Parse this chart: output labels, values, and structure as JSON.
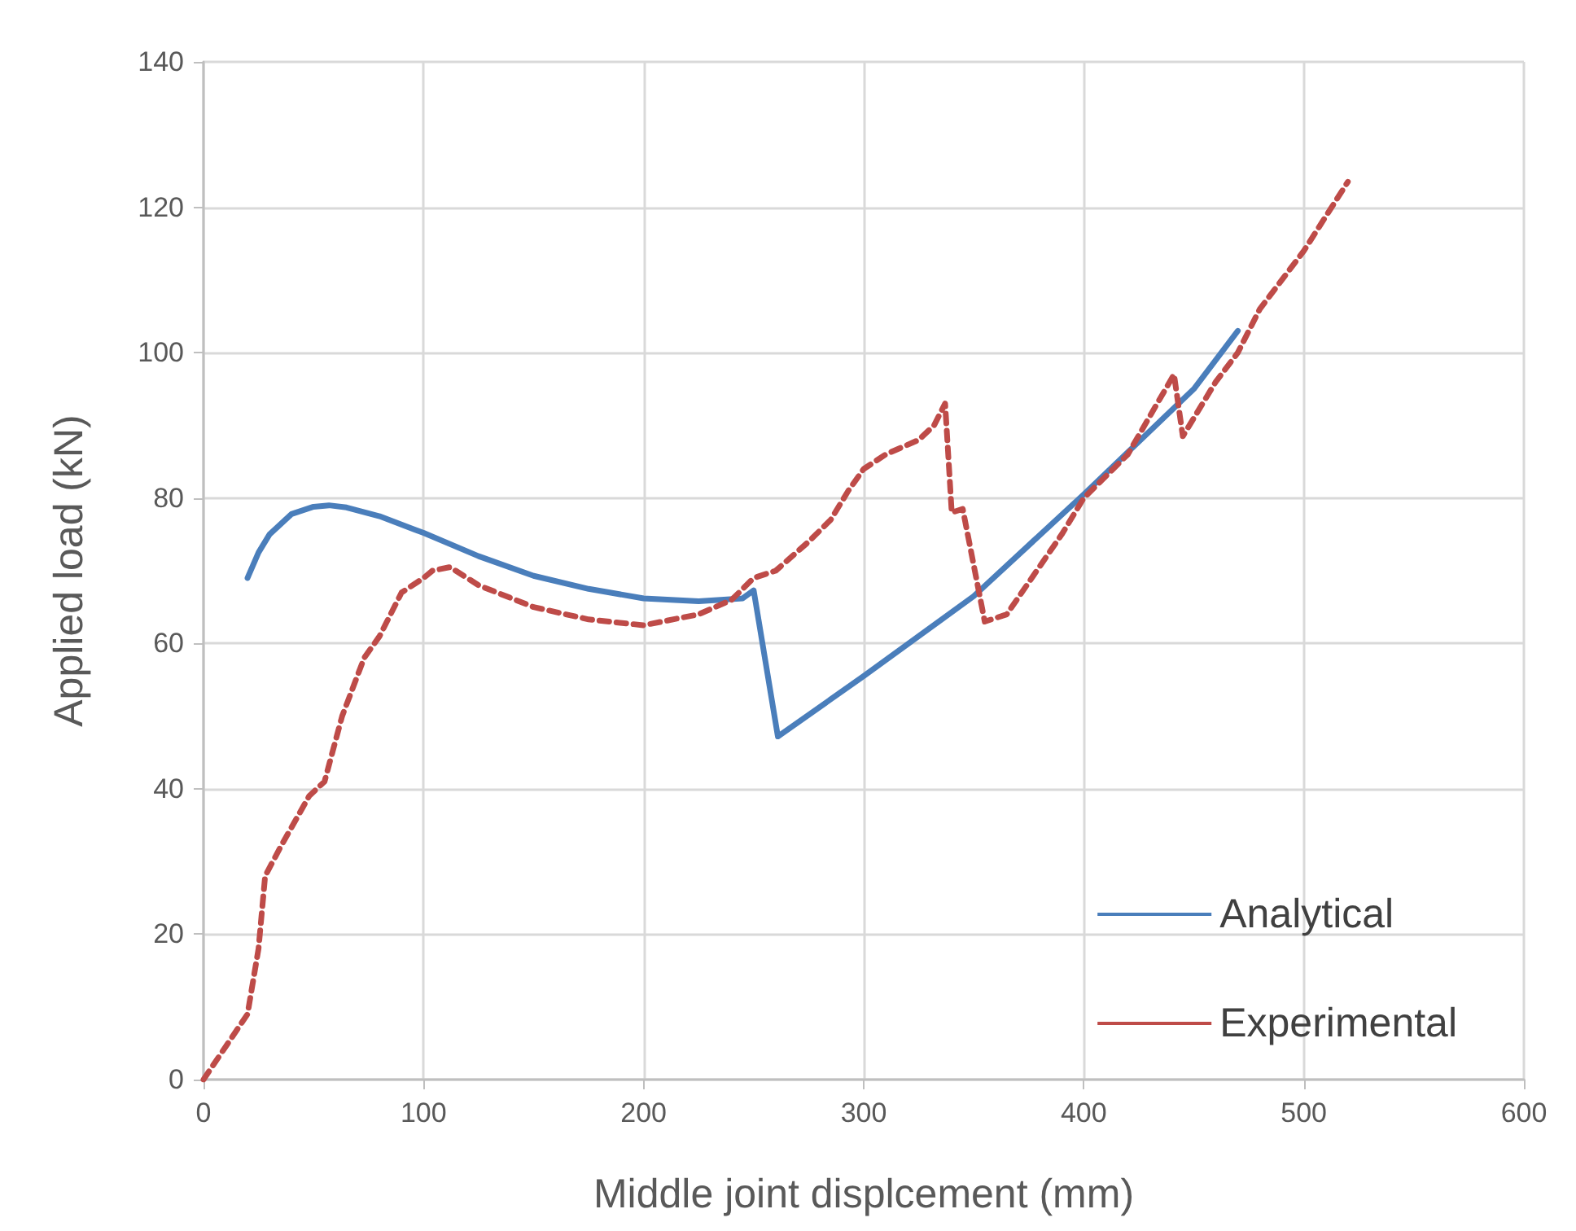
{
  "chart_data": {
    "type": "line",
    "xlabel": "Middle joint displcement (mm)",
    "ylabel": "Applied load (kN)",
    "xlim": [
      0,
      600
    ],
    "xticks": [
      0,
      100,
      200,
      300,
      400,
      500,
      600
    ],
    "ylim": [
      0,
      140
    ],
    "yticks": [
      0,
      20,
      40,
      60,
      80,
      100,
      120,
      140
    ],
    "grid": true,
    "legend": "bottom right",
    "marker": "none",
    "series": [
      {
        "name": "Analytical",
        "color": "#4a7ebb",
        "line_style": "solid",
        "x": [
          20,
          25,
          30,
          40,
          50,
          57,
          65,
          80,
          100,
          125,
          150,
          175,
          200,
          225,
          245,
          250,
          261,
          300,
          350,
          400,
          450,
          470
        ],
        "values": [
          69,
          72.5,
          75,
          77.8,
          78.8,
          79,
          78.7,
          77.5,
          75.2,
          72,
          69.3,
          67.5,
          66.2,
          65.8,
          66.2,
          67.3,
          47.2,
          55.5,
          66.5,
          80.5,
          95,
          103
        ]
      },
      {
        "name": "Experimental",
        "color": "#be4b48",
        "line_style": "dashed",
        "x": [
          0,
          20,
          25,
          28,
          35,
          48,
          55,
          63,
          73,
          80,
          90,
          100,
          104,
          112,
          125,
          150,
          175,
          200,
          225,
          240,
          250,
          260,
          275,
          285,
          293,
          300,
          310,
          325,
          332,
          337,
          340,
          345,
          355,
          365,
          390,
          400,
          420,
          441,
          445,
          460,
          470,
          480,
          500,
          520
        ],
        "values": [
          0,
          9,
          18,
          28,
          32,
          39,
          41,
          50,
          58,
          61,
          67,
          69,
          70,
          70.5,
          68,
          65,
          63.3,
          62.5,
          64,
          66,
          69,
          70,
          74,
          77,
          81,
          84,
          86,
          88,
          90,
          93,
          78,
          78.5,
          63,
          64,
          75,
          80,
          86,
          97,
          88.5,
          96,
          100,
          106,
          114,
          123.5
        ]
      }
    ]
  }
}
